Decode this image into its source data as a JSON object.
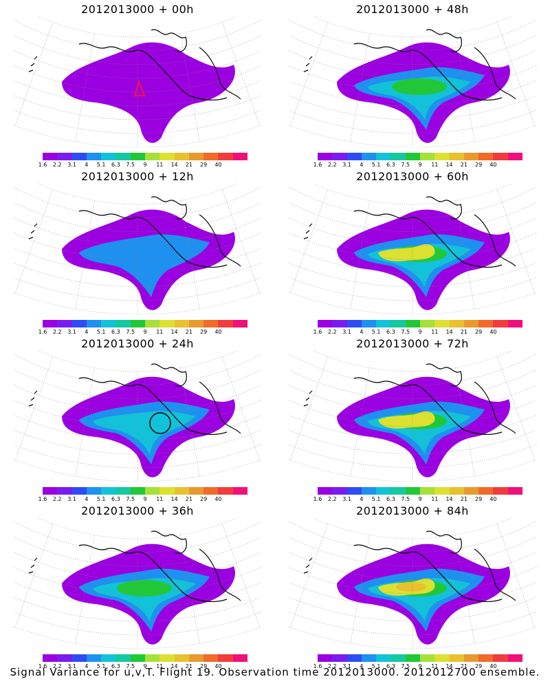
{
  "panels": [
    {
      "title": "2012013000 + 00h",
      "intensity": 0.0,
      "marker": "triangle"
    },
    {
      "title": "2012013000 + 48h",
      "intensity": 0.55
    },
    {
      "title": "2012013000 + 12h",
      "intensity": 0.2
    },
    {
      "title": "2012013000 + 60h",
      "intensity": 0.7
    },
    {
      "title": "2012013000 + 24h",
      "intensity": 0.35,
      "marker": "circle"
    },
    {
      "title": "2012013000 + 72h",
      "intensity": 0.8
    },
    {
      "title": "2012013000 + 36h",
      "intensity": 0.45
    },
    {
      "title": "2012013000 + 84h",
      "intensity": 0.9
    }
  ],
  "colorbar": {
    "labels": [
      "1.6",
      "2.2",
      "3.1",
      "4",
      "5.1",
      "6.3",
      "7.5",
      "9",
      "11",
      "14",
      "21",
      "29",
      "40"
    ],
    "colors": [
      "#9b00e0",
      "#7a1cf0",
      "#2f4cf2",
      "#1e90f0",
      "#12c2d8",
      "#16c8a0",
      "#20c838",
      "#a6e038",
      "#dce030",
      "#e8c030",
      "#e89a2e",
      "#f06a2a",
      "#f03c3c",
      "#f0107a"
    ]
  },
  "footer": "Signal Variance for u,v,T. Flight 19. Observation time 2012013000. 2012012700 ensemble."
}
